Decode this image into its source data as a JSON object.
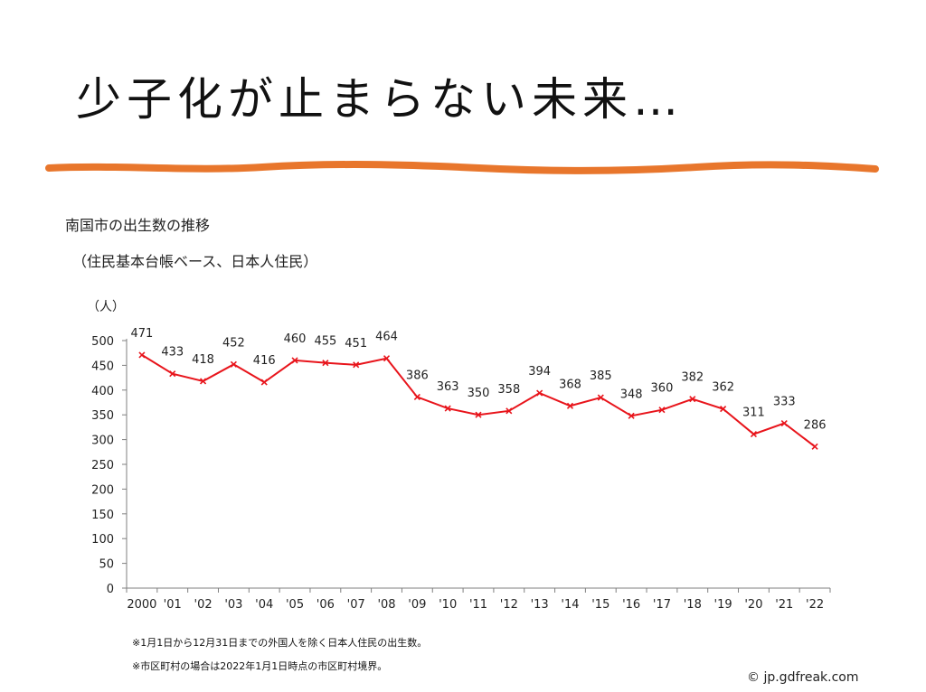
{
  "slide": {
    "title": "少子化が止まらない未来…",
    "credit": "© jp.gdfreak.com"
  },
  "notes": [
    "※1月1日から12月31日までの外国人を除く日本人住民の出生数。",
    "※市区町村の場合は2022年1月1日時点の市区町村境界。"
  ],
  "colors": {
    "brush": "#e8762c",
    "series": "#e8141b",
    "axis": "#7f7f7f"
  },
  "chart_data": {
    "type": "line",
    "title": "南国市の出生数の推移",
    "subtitle": "（住民基本台帳ベース、日本人住民）",
    "ylabel": "（人）",
    "xlabel": "",
    "categories": [
      "2000",
      "'01",
      "'02",
      "'03",
      "'04",
      "'05",
      "'06",
      "'07",
      "'08",
      "'09",
      "'10",
      "'11",
      "'12",
      "'13",
      "'14",
      "'15",
      "'16",
      "'17",
      "'18",
      "'19",
      "'20",
      "'21",
      "'22"
    ],
    "values": [
      471,
      433,
      418,
      452,
      416,
      460,
      455,
      451,
      464,
      386,
      363,
      350,
      358,
      394,
      368,
      385,
      348,
      360,
      382,
      362,
      311,
      333,
      286
    ],
    "ylim": [
      0,
      500
    ],
    "yticks": [
      0,
      50,
      100,
      150,
      200,
      250,
      300,
      350,
      400,
      450,
      500
    ],
    "grid": false,
    "legend": "none",
    "data_labels": true
  }
}
